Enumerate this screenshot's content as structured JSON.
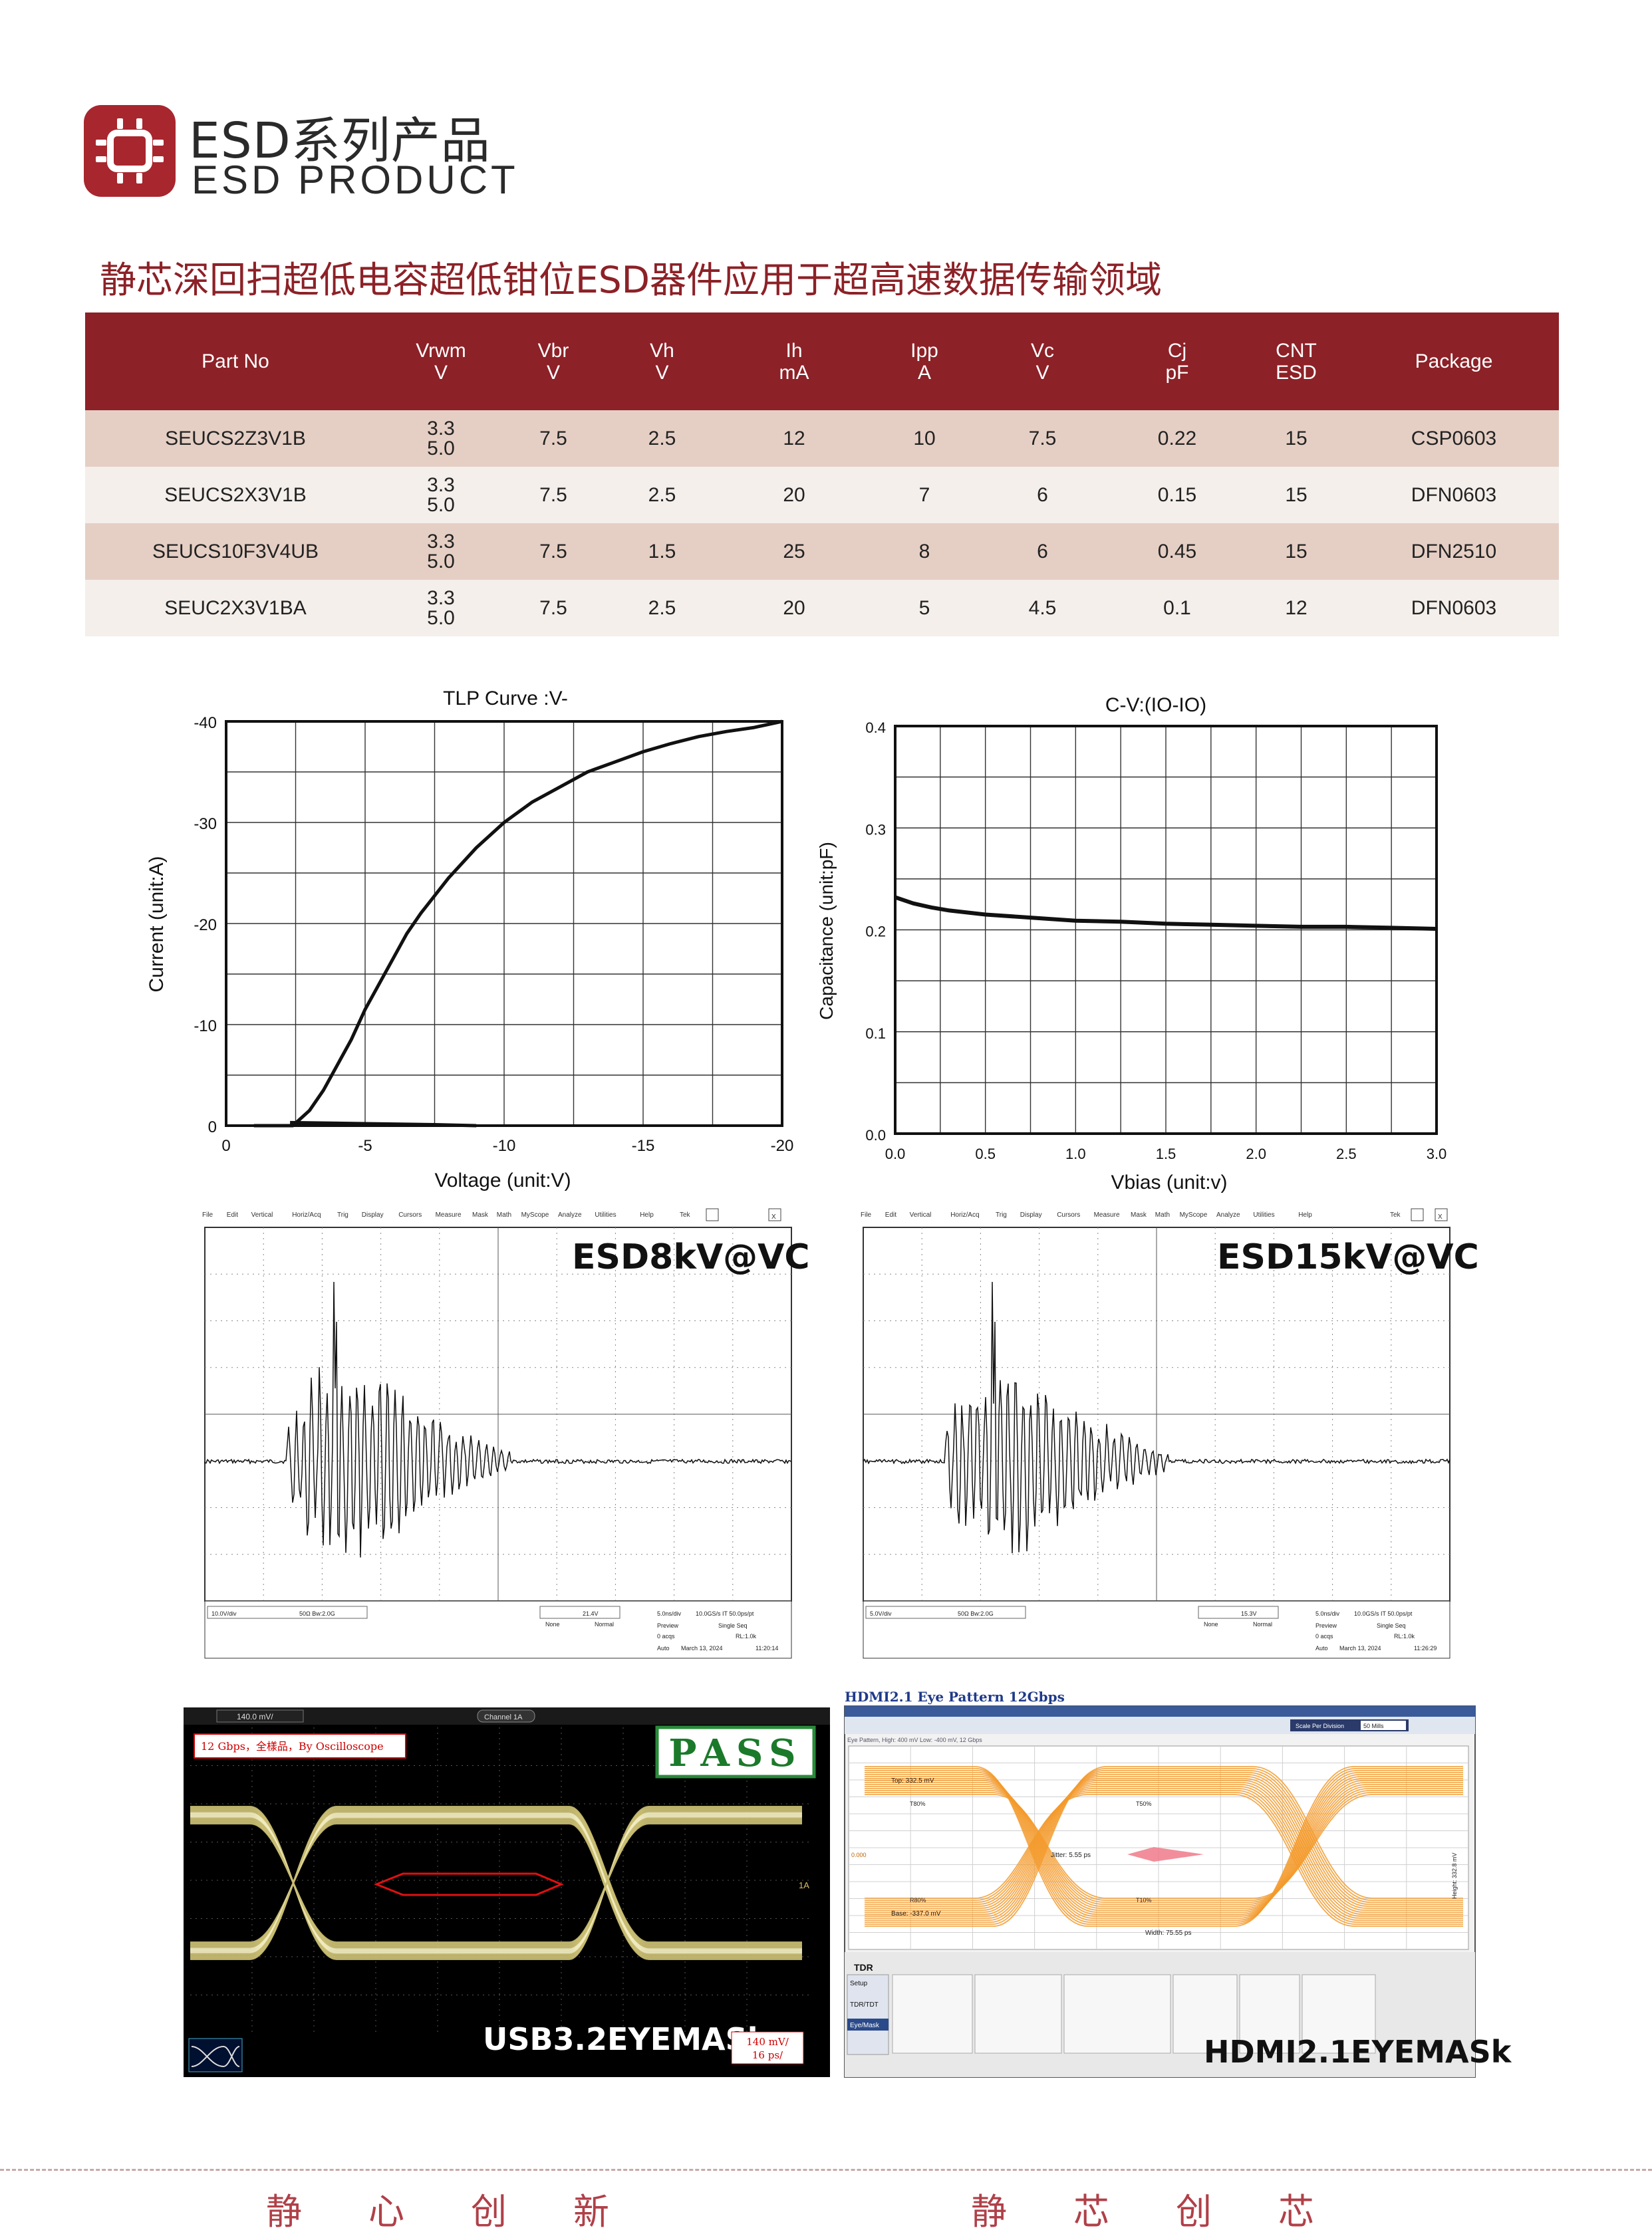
{
  "header": {
    "brand_cn": "ESD系列产品",
    "brand_en": "ESD PRODUCT",
    "headline": "静芯深回扫超低电容超低钳位ESD器件应用于超高速数据传输领域"
  },
  "table": {
    "columns": [
      {
        "name": "Part No",
        "unit": ""
      },
      {
        "name": "Vrwm",
        "unit": "V"
      },
      {
        "name": "Vbr",
        "unit": "V"
      },
      {
        "name": "Vh",
        "unit": "V"
      },
      {
        "name": "Ih",
        "unit": "mA"
      },
      {
        "name": "Ipp",
        "unit": "A"
      },
      {
        "name": "Vc",
        "unit": "V"
      },
      {
        "name": "Cj",
        "unit": "pF"
      },
      {
        "name": "CNT",
        "unit": "ESD"
      },
      {
        "name": "Package",
        "unit": ""
      }
    ],
    "rows": [
      {
        "part": "SEUCS2Z3V1B",
        "vrwm1": "3.3",
        "vrwm2": "5.0",
        "vbr": "7.5",
        "vh": "2.5",
        "ih": "12",
        "ipp": "10",
        "vc": "7.5",
        "cj": "0.22",
        "cnt": "15",
        "pkg": "CSP0603"
      },
      {
        "part": "SEUCS2X3V1B",
        "vrwm1": "3.3",
        "vrwm2": "5.0",
        "vbr": "7.5",
        "vh": "2.5",
        "ih": "20",
        "ipp": "7",
        "vc": "6",
        "cj": "0.15",
        "cnt": "15",
        "pkg": "DFN0603"
      },
      {
        "part": "SEUCS10F3V4UB",
        "vrwm1": "3.3",
        "vrwm2": "5.0",
        "vbr": "7.5",
        "vh": "1.5",
        "ih": "25",
        "ipp": "8",
        "vc": "6",
        "cj": "0.45",
        "cnt": "15",
        "pkg": "DFN2510"
      },
      {
        "part": "SEUC2X3V1BA",
        "vrwm1": "3.3",
        "vrwm2": "5.0",
        "vbr": "7.5",
        "vh": "2.5",
        "ih": "20",
        "ipp": "5",
        "vc": "4.5",
        "cj": "0.1",
        "cnt": "12",
        "pkg": "DFN0603"
      }
    ]
  },
  "chart_data": [
    {
      "type": "line",
      "title": "TLP Curve :V-",
      "xlabel": "Voltage (unit:V)",
      "ylabel": "Current (unit:A)",
      "xlim": [
        0,
        -20
      ],
      "ylim": [
        0,
        -40
      ],
      "x_ticks": [
        "0",
        "-5",
        "-10",
        "-15",
        "-20"
      ],
      "y_ticks": [
        "0",
        "-10",
        "-20",
        "-30",
        "-40"
      ],
      "grid": true,
      "series": [
        {
          "values": [
            [
              -1,
              0
            ],
            [
              -2.4,
              0
            ],
            [
              -2.6,
              -0.5
            ],
            [
              -3,
              -1.5
            ],
            [
              -3.5,
              -3.5
            ],
            [
              -4,
              -6
            ],
            [
              -4.5,
              -8.5
            ],
            [
              -5,
              -11.5
            ],
            [
              -5.5,
              -14
            ],
            [
              -6,
              -16.5
            ],
            [
              -6.5,
              -19
            ],
            [
              -7,
              -21
            ],
            [
              -8,
              -24.5
            ],
            [
              -9,
              -27.5
            ],
            [
              -10,
              -30
            ],
            [
              -11,
              -32
            ],
            [
              -12,
              -33.5
            ],
            [
              -13,
              -35
            ],
            [
              -14,
              -36
            ],
            [
              -15,
              -37
            ],
            [
              -16,
              -37.8
            ],
            [
              -17,
              -38.5
            ],
            [
              -18,
              -39
            ],
            [
              -19,
              -39.4
            ],
            [
              -20,
              -40
            ]
          ]
        },
        {
          "values": [
            [
              -2.3,
              -0.3
            ],
            [
              -5,
              -0.2
            ],
            [
              -7.5,
              -0.1
            ],
            [
              -9,
              0
            ]
          ]
        }
      ]
    },
    {
      "type": "line",
      "title": "C-V:(IO-IO)",
      "xlabel": "Vbias (unit:v)",
      "ylabel": "Capacitance (unit:pF)",
      "xlim": [
        0,
        3
      ],
      "ylim": [
        0,
        0.4
      ],
      "x_ticks": [
        "0.0",
        "0.5",
        "1.0",
        "1.5",
        "2.0",
        "2.5",
        "3.0"
      ],
      "y_ticks": [
        "0.0",
        "0.1",
        "0.2",
        "0.3",
        "0.4"
      ],
      "grid": true,
      "series": [
        {
          "values": [
            [
              0,
              0.232
            ],
            [
              0.1,
              0.226
            ],
            [
              0.2,
              0.222
            ],
            [
              0.3,
              0.219
            ],
            [
              0.5,
              0.215
            ],
            [
              0.75,
              0.212
            ],
            [
              1.0,
              0.209
            ],
            [
              1.25,
              0.208
            ],
            [
              1.5,
              0.206
            ],
            [
              1.75,
              0.205
            ],
            [
              2.0,
              0.204
            ],
            [
              2.25,
              0.203
            ],
            [
              2.5,
              0.203
            ],
            [
              2.75,
              0.202
            ],
            [
              3.0,
              0.201
            ]
          ]
        }
      ]
    }
  ],
  "scopes": [
    {
      "label": "ESD8kV@VC",
      "menu": [
        "File",
        "Edit",
        "Vertical",
        "Horiz/Acq",
        "Trig",
        "Display",
        "Cursors",
        "Measure",
        "Mask",
        "Math",
        "MyScope",
        "Analyze",
        "Utilities",
        "Help"
      ],
      "ch_scale": "10.0V/div",
      "ch_info": "50Ω  Bw:2.0G",
      "trig_level": "21.4V",
      "trig_mode": "None",
      "trig_norm": "Normal",
      "timebase": "5.0ns/div",
      "sample": "10.0GS/s  IT  50.0ps/pt",
      "preview": "Preview",
      "seq": "Single Seq",
      "acqs": "0 acqs",
      "rl": "RL:1.0k",
      "auto": "Auto",
      "date": "March 13, 2024",
      "time": "11:20:14"
    },
    {
      "label": "ESD15kV@VC",
      "menu": [
        "File",
        "Edit",
        "Vertical",
        "Horiz/Acq",
        "Trig",
        "Display",
        "Cursors",
        "Measure",
        "Mask",
        "Math",
        "MyScope",
        "Analyze",
        "Utilities",
        "Help"
      ],
      "ch_scale": "5.0V/div",
      "ch_info": "50Ω  Bw:2.0G",
      "trig_level": "15.3V",
      "trig_mode": "None",
      "trig_norm": "Normal",
      "timebase": "5.0ns/div",
      "sample": "10.0GS/s  IT  50.0ps/pt",
      "preview": "Preview",
      "seq": "Single Seq",
      "acqs": "0 acqs",
      "rl": "RL:1.0k",
      "auto": "Auto",
      "date": "March 13, 2024",
      "time": "11:26:29"
    }
  ],
  "eye_usb": {
    "scale": "140.0 mV/",
    "ch": "Channel 1A",
    "note": "12 Gbps，全樣品，By Oscilloscope",
    "pass": "PASS",
    "marker": "1A",
    "label": "USB3.2EYEMASk",
    "scale_box_1": "140 mV/",
    "scale_box_2": "16 ps/"
  },
  "eye_hdmi": {
    "title": "HDMI2.1 Eye Pattern  12Gbps",
    "subtitle": "Eye Pattern, High: 400 mV Low: -400 mV, 12 Gbps",
    "scale_label": "Scale Per Division",
    "scale_value": "50 Mills",
    "top_level": "Top: 332.5 mV",
    "base_level": "Base: -337.0 mV",
    "jitter": "Jitter: 5.55 ps",
    "width": "Width: 75.55 ps",
    "height": "Height: 332.8 mV",
    "pct_top": "T80%",
    "pct_mid": "T50%",
    "pct_low": "R80%",
    "pct_low2": "T10%",
    "level_mid": "0.000",
    "tdr": "TDR",
    "setup": "Setup",
    "tdr_tdt": "TDR/TDT",
    "eye_mask": "Eye/Mask",
    "label": "HDMI2.1EYEMASk"
  },
  "footer": {
    "left": "静心创新",
    "right": "静芯创芯"
  }
}
